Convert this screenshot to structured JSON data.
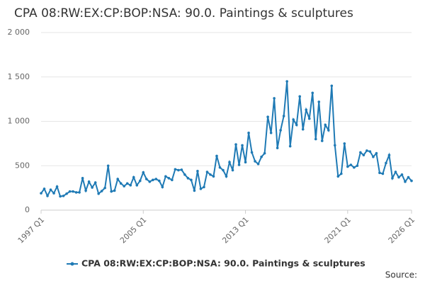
{
  "chart_data": {
    "type": "line",
    "title": "CPA 08:RW:EX:CP:BOP:NSA: 90.0. Paintings & sculptures",
    "source": "Source:",
    "categories": [
      "1997 Q1",
      null,
      null,
      null,
      null,
      null,
      null,
      null,
      null,
      null,
      null,
      null,
      null,
      null,
      null,
      null,
      null,
      null,
      null,
      null,
      null,
      null,
      null,
      null,
      null,
      null,
      null,
      null,
      null,
      null,
      null,
      null,
      "2005 Q1",
      null,
      null,
      null,
      null,
      null,
      null,
      null,
      null,
      null,
      null,
      null,
      null,
      null,
      null,
      null,
      null,
      null,
      null,
      null,
      null,
      null,
      null,
      null,
      null,
      null,
      null,
      null,
      null,
      null,
      null,
      null,
      "2013 Q1",
      null,
      null,
      null,
      null,
      null,
      null,
      null,
      null,
      null,
      null,
      null,
      null,
      null,
      null,
      null,
      null,
      null,
      null,
      null,
      null,
      null,
      null,
      null,
      null,
      null,
      null,
      null,
      null,
      null,
      null,
      null,
      "2021 Q1",
      null,
      null,
      null,
      null,
      null,
      null,
      null,
      null,
      null,
      null,
      null,
      null,
      null,
      null,
      null,
      null,
      null,
      null,
      null,
      "2026 Q1"
    ],
    "series": [
      {
        "name": "CPA 08:RW:EX:CP:BOP:NSA: 90.0. Paintings & sculptures",
        "color": "#1f7ab5",
        "values": [
          190,
          240,
          160,
          230,
          190,
          265,
          155,
          160,
          185,
          210,
          210,
          200,
          200,
          360,
          220,
          320,
          255,
          310,
          185,
          215,
          250,
          500,
          210,
          220,
          350,
          300,
          270,
          300,
          280,
          370,
          280,
          330,
          425,
          350,
          320,
          340,
          350,
          330,
          260,
          380,
          360,
          340,
          460,
          450,
          455,
          400,
          360,
          340,
          220,
          440,
          240,
          260,
          430,
          400,
          380,
          610,
          480,
          450,
          380,
          540,
          450,
          740,
          510,
          730,
          540,
          870,
          650,
          550,
          520,
          600,
          640,
          1050,
          870,
          1260,
          700,
          900,
          1060,
          1450,
          720,
          1020,
          960,
          1280,
          910,
          1130,
          1030,
          1320,
          800,
          1220,
          780,
          960,
          900,
          1400,
          730,
          380,
          410,
          750,
          490,
          510,
          480,
          500,
          650,
          620,
          670,
          660,
          600,
          640,
          420,
          410,
          530,
          620,
          360,
          430,
          370,
          400,
          320,
          370,
          330
        ]
      }
    ],
    "ylim": [
      0,
      2000
    ],
    "yticks": [
      0,
      500,
      {
        "value": 1000,
        "label": "1 000"
      },
      {
        "value": 1500,
        "label": "1 500"
      },
      {
        "value": 2000,
        "label": "2 000"
      }
    ],
    "grid": true
  }
}
